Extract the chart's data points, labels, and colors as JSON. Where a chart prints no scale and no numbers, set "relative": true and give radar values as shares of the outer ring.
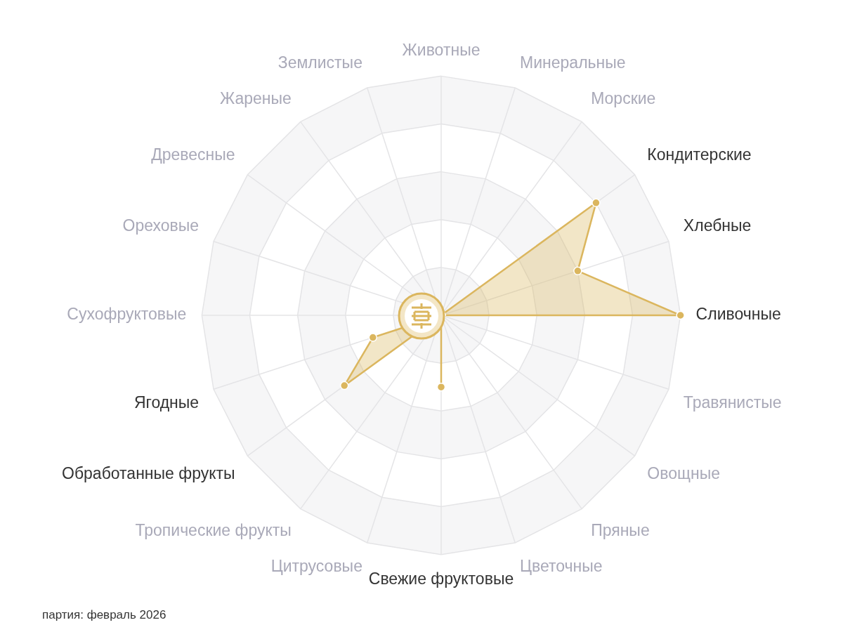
{
  "chart_data": {
    "type": "radar",
    "relative": true,
    "categories": [
      "Животные",
      "Минеральные",
      "Морские",
      "Кондитерские",
      "Хлебные",
      "Сливочные",
      "Травянистые",
      "Овощные",
      "Пряные",
      "Цветочные",
      "Свежие фруктовые",
      "Цитрусовые",
      "Тропические фрукты",
      "Обработанные фрукты",
      "Ягодные",
      "Сухофруктовые",
      "Ореховые",
      "Древесные",
      "Жареные",
      "Землистые"
    ],
    "series": [
      {
        "color": "#dbb65e",
        "values": [
          0,
          0,
          0,
          0.8,
          0.6,
          1,
          0,
          0,
          0,
          0,
          0.3,
          0,
          0,
          0.5,
          0.3,
          0,
          0,
          0,
          0,
          0
        ]
      }
    ],
    "marker": "circle",
    "legend": false,
    "grid": true,
    "annotations": [
      "партия: февраль 2026"
    ]
  }
}
